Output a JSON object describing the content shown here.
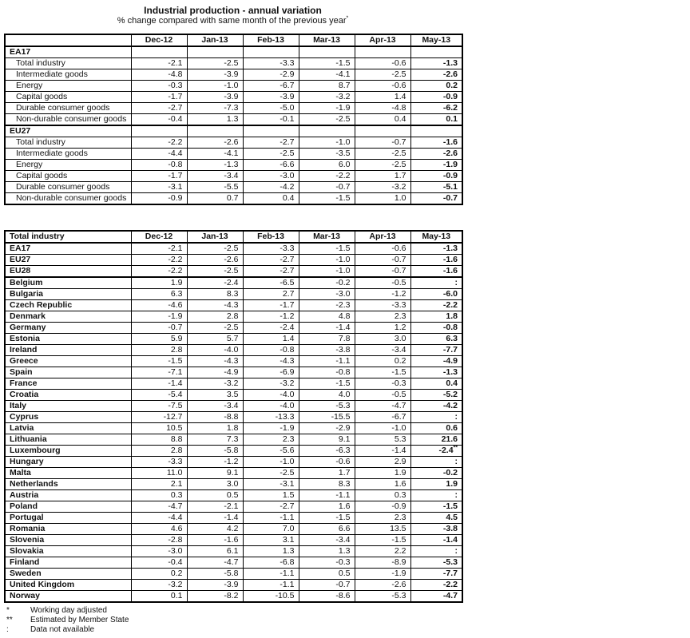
{
  "title": "Industrial production - annual variation",
  "subtitle": "% change compared with same month of the previous year",
  "subtitle_note_symbol": "*",
  "columns": [
    "Dec-12",
    "Jan-13",
    "Feb-13",
    "Mar-13",
    "Apr-13",
    "May-13"
  ],
  "table1": {
    "sections": [
      {
        "name": "EA17",
        "rows": [
          {
            "label": "Total industry",
            "values": [
              "-2.1",
              "-2.5",
              "-3.3",
              "-1.5",
              "-0.6",
              "-1.3"
            ]
          },
          {
            "label": "Intermediate goods",
            "values": [
              "-4.8",
              "-3.9",
              "-2.9",
              "-4.1",
              "-2.5",
              "-2.6"
            ]
          },
          {
            "label": "Energy",
            "values": [
              "-0.3",
              "-1.0",
              "-6.7",
              "8.7",
              "-0.6",
              "0.2"
            ]
          },
          {
            "label": "Capital goods",
            "values": [
              "-1.7",
              "-3.9",
              "-3.9",
              "-3.2",
              "1.4",
              "-0.9"
            ]
          },
          {
            "label": "Durable consumer goods",
            "values": [
              "-2.7",
              "-7.3",
              "-5.0",
              "-1.9",
              "-4.8",
              "-6.2"
            ]
          },
          {
            "label": "Non-durable consumer goods",
            "values": [
              "-0.4",
              "1.3",
              "-0.1",
              "-2.5",
              "0.4",
              "0.1"
            ]
          }
        ]
      },
      {
        "name": "EU27",
        "rows": [
          {
            "label": "Total industry",
            "values": [
              "-2.2",
              "-2.6",
              "-2.7",
              "-1.0",
              "-0.7",
              "-1.6"
            ]
          },
          {
            "label": "Intermediate goods",
            "values": [
              "-4.4",
              "-4.1",
              "-2.5",
              "-3.5",
              "-2.5",
              "-2.6"
            ]
          },
          {
            "label": "Energy",
            "values": [
              "-0.8",
              "-1.3",
              "-6.6",
              "6.0",
              "-2.5",
              "-1.9"
            ]
          },
          {
            "label": "Capital goods",
            "values": [
              "-1.7",
              "-3.4",
              "-3.0",
              "-2.2",
              "1.7",
              "-0.9"
            ]
          },
          {
            "label": "Durable consumer goods",
            "values": [
              "-3.1",
              "-5.5",
              "-4.2",
              "-0.7",
              "-3.2",
              "-5.1"
            ]
          },
          {
            "label": "Non-durable consumer goods",
            "values": [
              "-0.9",
              "0.7",
              "0.4",
              "-1.5",
              "1.0",
              "-0.7"
            ]
          }
        ]
      }
    ]
  },
  "table2": {
    "header_label": "Total industry",
    "aggregates": [
      {
        "label": "EA17",
        "values": [
          "-2.1",
          "-2.5",
          "-3.3",
          "-1.5",
          "-0.6",
          "-1.3"
        ]
      },
      {
        "label": "EU27",
        "values": [
          "-2.2",
          "-2.6",
          "-2.7",
          "-1.0",
          "-0.7",
          "-1.6"
        ]
      },
      {
        "label": "EU28",
        "values": [
          "-2.2",
          "-2.5",
          "-2.7",
          "-1.0",
          "-0.7",
          "-1.6"
        ]
      }
    ],
    "countries": [
      {
        "label": "Belgium",
        "values": [
          "1.9",
          "-2.4",
          "-6.5",
          "-0.2",
          "-0.5",
          ":"
        ]
      },
      {
        "label": "Bulgaria",
        "values": [
          "6.3",
          "8.3",
          "2.7",
          "-3.0",
          "-1.2",
          "-6.0"
        ]
      },
      {
        "label": "Czech Republic",
        "values": [
          "-4.6",
          "-4.3",
          "-1.7",
          "-2.3",
          "-3.3",
          "-2.2"
        ]
      },
      {
        "label": "Denmark",
        "values": [
          "-1.9",
          "2.8",
          "-1.2",
          "4.8",
          "2.3",
          "1.8"
        ]
      },
      {
        "label": "Germany",
        "values": [
          "-0.7",
          "-2.5",
          "-2.4",
          "-1.4",
          "1.2",
          "-0.8"
        ]
      },
      {
        "label": "Estonia",
        "values": [
          "5.9",
          "5.7",
          "1.4",
          "7.8",
          "3.0",
          "6.3"
        ]
      },
      {
        "label": "Ireland",
        "values": [
          "2.8",
          "-4.0",
          "-0.8",
          "-3.8",
          "-3.4",
          "-7.7"
        ]
      },
      {
        "label": "Greece",
        "values": [
          "-1.5",
          "-4.3",
          "-4.3",
          "-1.1",
          "0.2",
          "-4.9"
        ]
      },
      {
        "label": "Spain",
        "values": [
          "-7.1",
          "-4.9",
          "-6.9",
          "-0.8",
          "-1.5",
          "-1.3"
        ]
      },
      {
        "label": "France",
        "values": [
          "-1.4",
          "-3.2",
          "-3.2",
          "-1.5",
          "-0.3",
          "0.4"
        ]
      },
      {
        "label": "Croatia",
        "values": [
          "-5.4",
          "3.5",
          "-4.0",
          "4.0",
          "-0.5",
          "-5.2"
        ]
      },
      {
        "label": "Italy",
        "values": [
          "-7.5",
          "-3.4",
          "-4.0",
          "-5.3",
          "-4.7",
          "-4.2"
        ]
      },
      {
        "label": "Cyprus",
        "values": [
          "-12.7",
          "-8.8",
          "-13.3",
          "-15.5",
          "-6.7",
          ":"
        ]
      },
      {
        "label": "Latvia",
        "values": [
          "10.5",
          "1.8",
          "-1.9",
          "-2.9",
          "-1.0",
          "0.6"
        ]
      },
      {
        "label": "Lithuania",
        "values": [
          "8.8",
          "7.3",
          "2.3",
          "9.1",
          "5.3",
          "21.6"
        ]
      },
      {
        "label": "Luxembourg",
        "values": [
          "2.8",
          "-5.8",
          "-5.6",
          "-6.3",
          "-1.4",
          "-2.4**"
        ]
      },
      {
        "label": "Hungary",
        "values": [
          "-3.3",
          "-1.2",
          "-1.0",
          "-0.6",
          "2.9",
          ":"
        ]
      },
      {
        "label": "Malta",
        "values": [
          "11.0",
          "9.1",
          "-2.5",
          "1.7",
          "1.9",
          "-0.2"
        ]
      },
      {
        "label": "Netherlands",
        "values": [
          "2.1",
          "3.0",
          "-3.1",
          "8.3",
          "1.6",
          "1.9"
        ]
      },
      {
        "label": "Austria",
        "values": [
          "0.3",
          "0.5",
          "1.5",
          "-1.1",
          "0.3",
          ":"
        ]
      },
      {
        "label": "Poland",
        "values": [
          "-4.7",
          "-2.1",
          "-2.7",
          "1.6",
          "-0.9",
          "-1.5"
        ]
      },
      {
        "label": "Portugal",
        "values": [
          "-4.4",
          "-1.4",
          "-1.1",
          "-1.5",
          "2.3",
          "4.5"
        ]
      },
      {
        "label": "Romania",
        "values": [
          "4.6",
          "4.2",
          "7.0",
          "6.6",
          "13.5",
          "-3.8"
        ]
      },
      {
        "label": "Slovenia",
        "values": [
          "-2.8",
          "-1.6",
          "3.1",
          "-3.4",
          "-1.5",
          "-1.4"
        ]
      },
      {
        "label": "Slovakia",
        "values": [
          "-3.0",
          "6.1",
          "1.3",
          "1.3",
          "2.2",
          ":"
        ]
      },
      {
        "label": "Finland",
        "values": [
          "-0.4",
          "-4.7",
          "-6.8",
          "-0.3",
          "-8.9",
          "-5.3"
        ]
      },
      {
        "label": "Sweden",
        "values": [
          "0.2",
          "-5.8",
          "-1.1",
          "0.5",
          "-1.9",
          "-7.7"
        ]
      },
      {
        "label": "United Kingdom",
        "values": [
          "-3.2",
          "-3.9",
          "-1.1",
          "-0.7",
          "-2.6",
          "-2.2"
        ]
      },
      {
        "label": "Norway",
        "values": [
          "0.1",
          "-8.2",
          "-10.5",
          "-8.6",
          "-5.3",
          "-4.7"
        ]
      }
    ]
  },
  "footnotes": [
    {
      "symbol": "*",
      "text": "Working day adjusted"
    },
    {
      "symbol": "**",
      "text": "Estimated by Member State"
    },
    {
      "symbol": ":",
      "text": "Data not available"
    }
  ]
}
